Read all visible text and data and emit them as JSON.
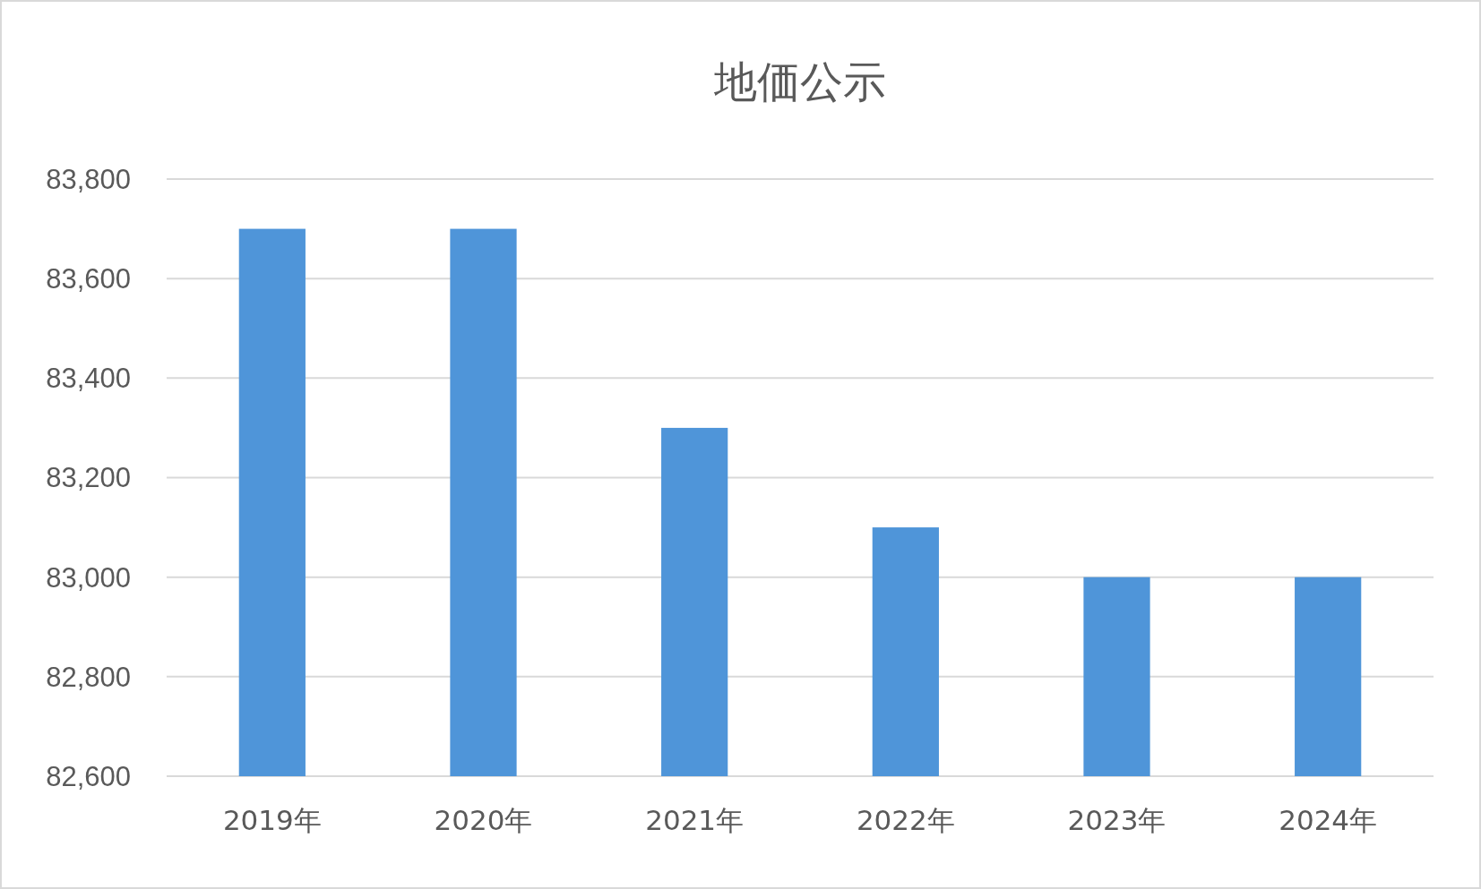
{
  "chart_data": {
    "type": "bar",
    "title": "地価公示",
    "categories": [
      "2019年",
      "2020年",
      "2021年",
      "2022年",
      "2023年",
      "2024年"
    ],
    "values": [
      83700,
      83700,
      83300,
      83100,
      83000,
      83000
    ],
    "color": "#4f95d9",
    "ylim": [
      82600,
      83800
    ],
    "yticks": [
      {
        "value": 82600,
        "label": "82,600"
      },
      {
        "value": 82800,
        "label": "82,800"
      },
      {
        "value": 83000,
        "label": "83,000"
      },
      {
        "value": 83200,
        "label": "83,200"
      },
      {
        "value": 83400,
        "label": "83,400"
      },
      {
        "value": 83600,
        "label": "83,600"
      },
      {
        "value": 83800,
        "label": "83,800"
      }
    ],
    "grid": true
  }
}
